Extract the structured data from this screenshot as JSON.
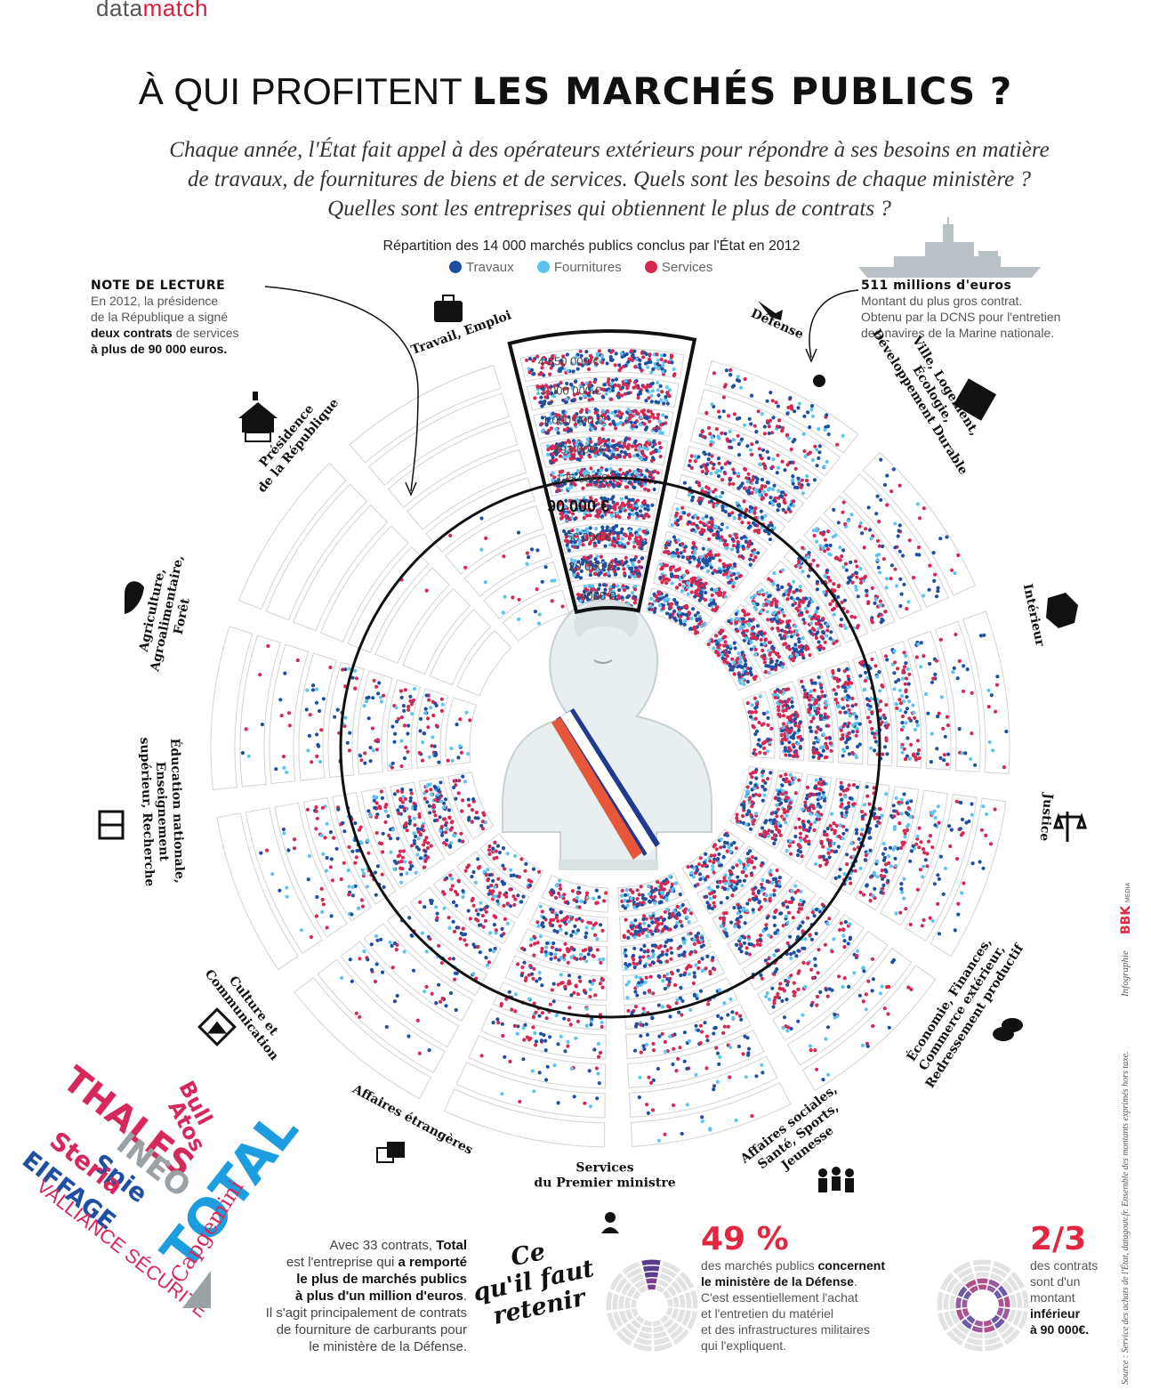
{
  "brand": {
    "part1": "data",
    "part2": "match"
  },
  "title": {
    "thin": "À QUI PROFITENT",
    "bold": "LES MARCHÉS PUBLICS ?"
  },
  "subtitle": {
    "line1": "Chaque année, l'État fait appel à des opérateurs extérieurs pour répondre à ses besoins en matière",
    "line2": "de travaux, de fournitures de biens et de services. Quels sont les besoins de chaque ministère ?",
    "line3": "Quelles sont les entreprises qui obtiennent le plus de contrats ?"
  },
  "colors": {
    "travaux": "#1f4fa3",
    "fournitures": "#5ec3f0",
    "services": "#d62852",
    "accent": "#e3263f"
  },
  "chart_data": {
    "type": "radial-dot",
    "title": "Répartition des 14 000 marchés publics conclus par l'État en 2012",
    "legend": [
      "Travaux",
      "Fournitures",
      "Services"
    ],
    "rings_labels": [
      "4 850 000 €",
      "3 000 000 €",
      "1 000 000 €",
      "193 000 €",
      "125 000 €",
      "90 000 €",
      "50 000 €",
      "20 000 €",
      "4000 €"
    ],
    "threshold_label": "90 000 €",
    "ministries": [
      {
        "name": "Défense",
        "density": [
          0.55,
          0.65,
          0.75,
          0.95,
          0.9,
          0.95,
          1.0,
          1.0,
          1.0
        ]
      },
      {
        "name": "Ville, Logement, Écologie, Développement Durable",
        "density": [
          0.15,
          0.2,
          0.3,
          0.55,
          0.5,
          0.65,
          0.75,
          0.85,
          0.9
        ]
      },
      {
        "name": "Intérieur",
        "density": [
          0.05,
          0.1,
          0.15,
          0.35,
          0.35,
          0.6,
          0.85,
          0.95,
          0.95
        ]
      },
      {
        "name": "Justice",
        "density": [
          0.04,
          0.06,
          0.12,
          0.3,
          0.35,
          0.5,
          0.65,
          0.85,
          0.4
        ]
      },
      {
        "name": "Économie, Finances, Commerce extérieur, Redressement productif",
        "density": [
          0.05,
          0.1,
          0.15,
          0.35,
          0.35,
          0.45,
          0.6,
          0.75,
          0.6
        ]
      },
      {
        "name": "Affaires sociales, Santé, Sports, Jeunesse",
        "density": [
          0.04,
          0.08,
          0.12,
          0.25,
          0.3,
          0.4,
          0.55,
          0.6,
          0.55
        ]
      },
      {
        "name": "Services du Premier ministre",
        "density": [
          0.03,
          0.05,
          0.1,
          0.2,
          0.22,
          0.35,
          0.55,
          0.75,
          0.85
        ]
      },
      {
        "name": "Affaires étrangères",
        "density": [
          0.0,
          0.03,
          0.06,
          0.15,
          0.2,
          0.28,
          0.38,
          0.42,
          0.35
        ]
      },
      {
        "name": "Culture et Communication",
        "density": [
          0.0,
          0.03,
          0.05,
          0.1,
          0.12,
          0.18,
          0.3,
          0.4,
          0.3
        ]
      },
      {
        "name": "Éducation nationale, Enseignement supérieur, Recherche",
        "density": [
          0.0,
          0.03,
          0.06,
          0.15,
          0.2,
          0.3,
          0.45,
          0.55,
          0.25
        ]
      },
      {
        "name": "Agriculture, Agroalimentaire, Forêt",
        "density": [
          0.0,
          0.02,
          0.04,
          0.08,
          0.1,
          0.14,
          0.2,
          0.25,
          0.1
        ]
      },
      {
        "name": "Présidence de la République",
        "density": [
          0.0,
          0.0,
          0.0,
          0.0,
          0.005,
          0.005,
          0.0,
          0.0,
          0.0
        ]
      },
      {
        "name": "Travail, Emploi",
        "density": [
          0.0,
          0.0,
          0.0,
          0.0,
          0.01,
          0.02,
          0.04,
          0.06,
          0.05
        ]
      }
    ]
  },
  "labels": {
    "m0": [
      "Défense"
    ],
    "m1": [
      "Ville, Logement,",
      "Écologie,",
      "Développement Durable"
    ],
    "m2": [
      "Intérieur"
    ],
    "m3": [
      "Justice"
    ],
    "m4": [
      "Économie, Finances,",
      "Commerce extérieur,",
      "Redressement productif"
    ],
    "m5": [
      "Affaires sociales,",
      "Santé, Sports,",
      "Jeunesse"
    ],
    "m6": [
      "Services",
      "du Premier ministre"
    ],
    "m7": [
      "Affaires étrangères"
    ],
    "m8": [
      "Culture et",
      "Communication"
    ],
    "m9": [
      "Éducation nationale,",
      "Enseignement",
      "supérieur, Recherche"
    ],
    "m10": [
      "Agriculture,",
      "Agroalimentaire,",
      "Forêt"
    ],
    "m11": [
      "Présidence",
      "de la République"
    ],
    "m12": [
      "Travail, Emploi"
    ]
  },
  "note": {
    "title": "NOTE DE LECTURE",
    "t1": "En 2012, la présidence",
    "t2": "de la République a signé",
    "b1": "deux contrats",
    "t3": " de services",
    "b2": "à plus de 90 000 euros."
  },
  "bignote": {
    "title": "511 millions d'euros",
    "t1": "Montant du plus gros contrat.",
    "t2": "Obtenu par la DCNS pour l'entretien",
    "t3": "des navires de la Marine nationale."
  },
  "companies": [
    "THALES",
    "Bull",
    "Atos",
    "INEO",
    "TOTAL",
    "Spie",
    "Steria",
    "EIFFAGE",
    "Capgemini",
    "VALLIANCE SÉCURITÉ"
  ],
  "total_text": {
    "t1": "Avec 33 contrats, ",
    "b1": "Total",
    "t2": "est l'entreprise qui ",
    "b2": "a remporté",
    "b3": "le plus de marchés publics",
    "b4": "à plus d'un million d'euros",
    "t3": ".",
    "t4": "Il s'agit principalement de contrats",
    "t5": "de fourniture de carburants pour",
    "t6": "le ministère de la Défense."
  },
  "retenir": {
    "l1": "Ce",
    "l2": "qu'il faut",
    "l3": "retenir"
  },
  "stat1": {
    "value": "49 %",
    "t1": "des marchés publics ",
    "b1": "concernent",
    "b2": "le ministère de la Défense",
    "t2": ".",
    "t3": "C'est essentiellement l'achat",
    "t4": "et l'entretien du matériel",
    "t5": "et des infrastructures militaires",
    "t6": "qui l'expliquent."
  },
  "stat2": {
    "value": "2/3",
    "t1": "des contrats",
    "t2": "sont d'un",
    "t3": "montant",
    "b1": "inférieur",
    "b2": "à 90 000€."
  },
  "credit": {
    "source": "Source : Service des achats de l'État, datagouv.fr. Ensemble des montants exprimés hors taxe.",
    "infographie": "Infographie",
    "agency": "BBK",
    "agency_sub": "MEDIA"
  }
}
